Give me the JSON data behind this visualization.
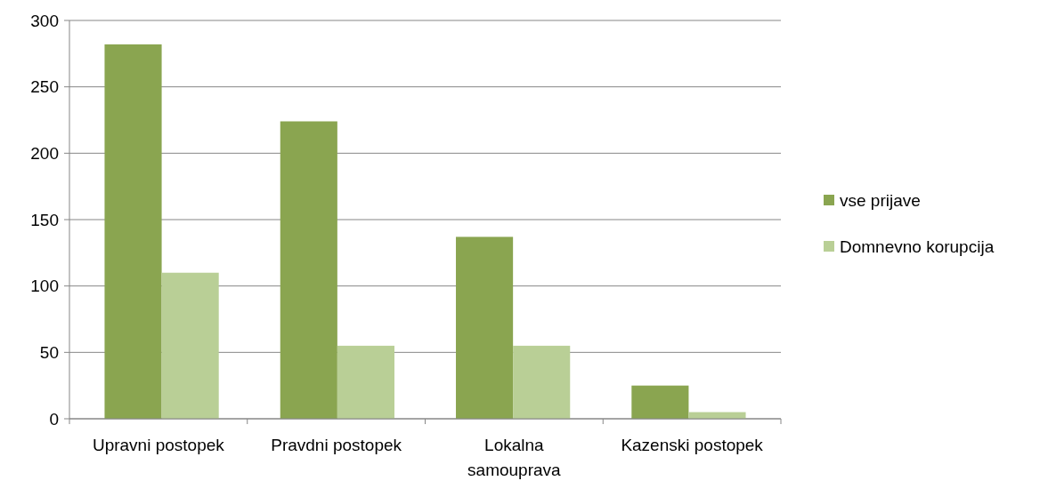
{
  "chart_data": {
    "type": "bar",
    "categories": [
      "Upravni postopek",
      "Pravdni postopek",
      "Lokalna samouprava",
      "Kazenski postopek"
    ],
    "series": [
      {
        "name": "vse prijave",
        "color": "#8aa550",
        "values": [
          282,
          224,
          137,
          25
        ]
      },
      {
        "name": "Domnevno korupcija",
        "color": "#b9cf96",
        "values": [
          110,
          55,
          55,
          5
        ]
      }
    ],
    "ylim": [
      0,
      300
    ],
    "yticks": [
      0,
      50,
      100,
      150,
      200,
      250,
      300
    ],
    "grid": "y",
    "legend": "right"
  }
}
